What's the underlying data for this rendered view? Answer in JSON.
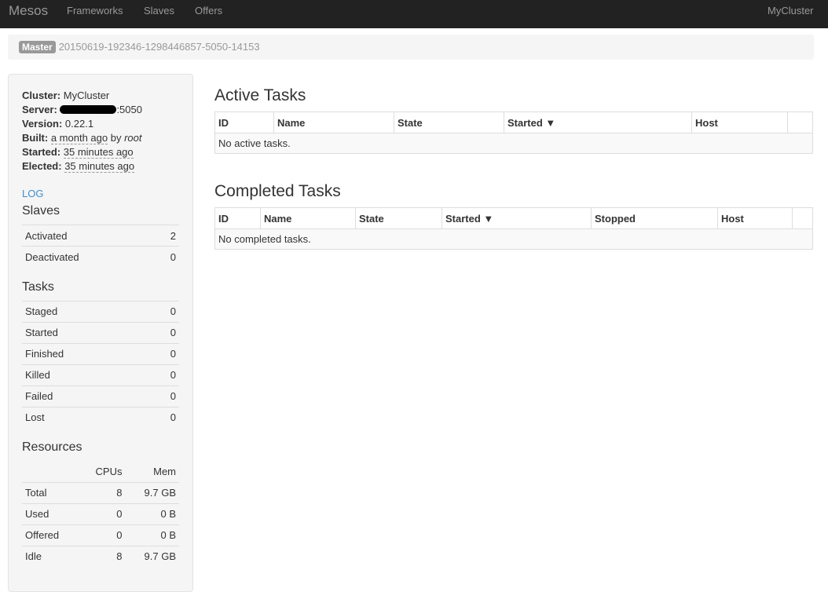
{
  "navbar": {
    "brand": "Mesos",
    "items": [
      "Frameworks",
      "Slaves",
      "Offers"
    ],
    "cluster": "MyCluster"
  },
  "breadcrumb": {
    "badge": "Master",
    "id": "20150619-192346-1298446857-5050-14153"
  },
  "info": {
    "cluster_label": "Cluster:",
    "cluster": "MyCluster",
    "server_label": "Server:",
    "server_port": ":5050",
    "version_label": "Version:",
    "version": "0.22.1",
    "built_label": "Built:",
    "built": "a month ago",
    "built_by": " by ",
    "built_user": "root",
    "started_label": "Started:",
    "started": "35 minutes ago",
    "elected_label": "Elected:",
    "elected": "35 minutes ago",
    "log": "LOG"
  },
  "slaves": {
    "title": "Slaves",
    "rows": [
      {
        "label": "Activated",
        "value": "2"
      },
      {
        "label": "Deactivated",
        "value": "0"
      }
    ]
  },
  "tasks": {
    "title": "Tasks",
    "rows": [
      {
        "label": "Staged",
        "value": "0"
      },
      {
        "label": "Started",
        "value": "0"
      },
      {
        "label": "Finished",
        "value": "0"
      },
      {
        "label": "Killed",
        "value": "0"
      },
      {
        "label": "Failed",
        "value": "0"
      },
      {
        "label": "Lost",
        "value": "0"
      }
    ]
  },
  "resources": {
    "title": "Resources",
    "headers": [
      "CPUs",
      "Mem"
    ],
    "rows": [
      {
        "label": "Total",
        "cpus": "8",
        "mem": "9.7 GB"
      },
      {
        "label": "Used",
        "cpus": "0",
        "mem": "0 B"
      },
      {
        "label": "Offered",
        "cpus": "0",
        "mem": "0 B"
      },
      {
        "label": "Idle",
        "cpus": "8",
        "mem": "9.7 GB"
      }
    ]
  },
  "active": {
    "title": "Active Tasks",
    "headers": [
      "ID",
      "Name",
      "State",
      "Started ▼",
      "Host",
      ""
    ],
    "empty": "No active tasks."
  },
  "completed": {
    "title": "Completed Tasks",
    "headers": [
      "ID",
      "Name",
      "State",
      "Started ▼",
      "Stopped",
      "Host",
      ""
    ],
    "empty": "No completed tasks."
  }
}
